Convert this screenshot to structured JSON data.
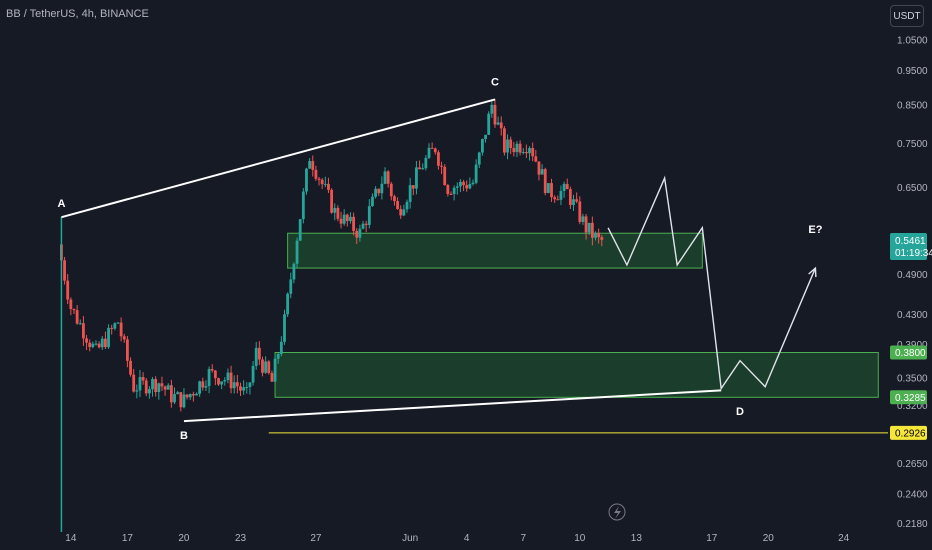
{
  "header": {
    "symbol_line": "BB / TetherUS, 4h, BINANCE",
    "currency_button": "USDT"
  },
  "colors": {
    "background": "#161a25",
    "up": "#26a69a",
    "down": "#ef5350",
    "zone_fill": "#1e4a2e",
    "zone_stroke": "#4caf50",
    "price_tag": "#26a69a",
    "level_tag": "#4caf50",
    "support_line": "#f5e63a"
  },
  "chart_data": {
    "type": "candlestick",
    "title": "BB / TetherUS, 4h, BINANCE",
    "y_scale": "log",
    "ylim": [
      0.212,
      1.12
    ],
    "y_ticks": [
      "1.0500",
      "0.9500",
      "0.8500",
      "0.7500",
      "0.6500",
      "0.4900",
      "0.4300",
      "0.3900",
      "0.3500",
      "0.3200",
      "0.2650",
      "0.2400",
      "0.2180"
    ],
    "x_ticks": [
      "14",
      "17",
      "20",
      "23",
      "27",
      "Jun",
      "4",
      "7",
      "10",
      "13",
      "17",
      "20",
      "24"
    ],
    "price_path": [
      {
        "date": "May 13 12:00",
        "price": 0.54
      },
      {
        "date": "May 14 04:00",
        "price": 0.44
      },
      {
        "date": "May 15 12:00",
        "price": 0.38
      },
      {
        "date": "May 16 16:00",
        "price": 0.42
      },
      {
        "date": "May 17 12:00",
        "price": 0.34
      },
      {
        "date": "May 18 20:00",
        "price": 0.345
      },
      {
        "date": "May 19 12:00",
        "price": 0.33
      },
      {
        "date": "May 20 04:00",
        "price": 0.325
      },
      {
        "date": "May 21 12:00",
        "price": 0.355
      },
      {
        "date": "May 22 20:00",
        "price": 0.345
      },
      {
        "date": "May 23 12:00",
        "price": 0.33
      },
      {
        "date": "May 24 00:00",
        "price": 0.38
      },
      {
        "date": "May 24 20:00",
        "price": 0.345
      },
      {
        "date": "May 25 12:00",
        "price": 0.42
      },
      {
        "date": "May 26 00:00",
        "price": 0.52
      },
      {
        "date": "May 26 20:00",
        "price": 0.72
      },
      {
        "date": "May 28 04:00",
        "price": 0.6
      },
      {
        "date": "May 29 12:00",
        "price": 0.56
      },
      {
        "date": "May 30 20:00",
        "price": 0.68
      },
      {
        "date": "May 31 12:00",
        "price": 0.6
      },
      {
        "date": "Jun 1 20:00",
        "price": 0.7
      },
      {
        "date": "Jun 2 12:00",
        "price": 0.74
      },
      {
        "date": "Jun 3 04:00",
        "price": 0.65
      },
      {
        "date": "Jun 4 12:00",
        "price": 0.66
      },
      {
        "date": "Jun 5 12:00",
        "price": 0.85
      },
      {
        "date": "Jun 6 04:00",
        "price": 0.74
      },
      {
        "date": "Jun 7 12:00",
        "price": 0.75
      },
      {
        "date": "Jun 8 12:00",
        "price": 0.64
      },
      {
        "date": "Jun 9 12:00",
        "price": 0.64
      },
      {
        "date": "Jun 10 12:00",
        "price": 0.57
      },
      {
        "date": "Jun 11 04:00",
        "price": 0.5461
      }
    ],
    "current_price": "0.5461",
    "countdown": "01:19:34",
    "levels": [
      "0.3800",
      "0.3285",
      "0.2926"
    ],
    "zones": [
      {
        "from_date": "May 25 12:00",
        "to_date": "Jun 16 12:00",
        "low": 0.5,
        "high": 0.56
      },
      {
        "from_date": "May 24 20:00",
        "to_date": "Jun 25 20:00",
        "low": 0.3285,
        "high": 0.38
      }
    ],
    "horizontal_line": {
      "from_date": "May 24 12:00",
      "price": 0.2926
    },
    "trendlines": [
      {
        "from": {
          "date": "May 13 12:00",
          "price": 0.59
        },
        "to": {
          "date": "Jun 5 12:00",
          "price": 0.865
        }
      },
      {
        "from": {
          "date": "May 20 00:00",
          "price": 0.304
        },
        "to": {
          "date": "Jun 17 12:00",
          "price": 0.336
        }
      }
    ],
    "projection": [
      {
        "date": "Jun 11 12:00",
        "price": 0.57
      },
      {
        "date": "Jun 12 12:00",
        "price": 0.505
      },
      {
        "date": "Jun 14 12:00",
        "price": 0.67
      },
      {
        "date": "Jun 15 04:00",
        "price": 0.505
      },
      {
        "date": "Jun 16 12:00",
        "price": 0.57
      },
      {
        "date": "Jun 17 12:00",
        "price": 0.338
      },
      {
        "date": "Jun 18 12:00",
        "price": 0.37
      },
      {
        "date": "Jun 19 20:00",
        "price": 0.34
      },
      {
        "date": "Jun 22 12:00",
        "price": 0.5
      }
    ],
    "annotations": [
      {
        "text": "A",
        "date": "May 13 12:00",
        "price": 0.61
      },
      {
        "text": "B",
        "date": "May 20 00:00",
        "price": 0.287
      },
      {
        "text": "C",
        "date": "Jun 5 12:00",
        "price": 0.905
      },
      {
        "text": "D",
        "date": "Jun 18 12:00",
        "price": 0.31
      },
      {
        "text": "E?",
        "date": "Jun 22 12:00",
        "price": 0.56
      }
    ]
  }
}
